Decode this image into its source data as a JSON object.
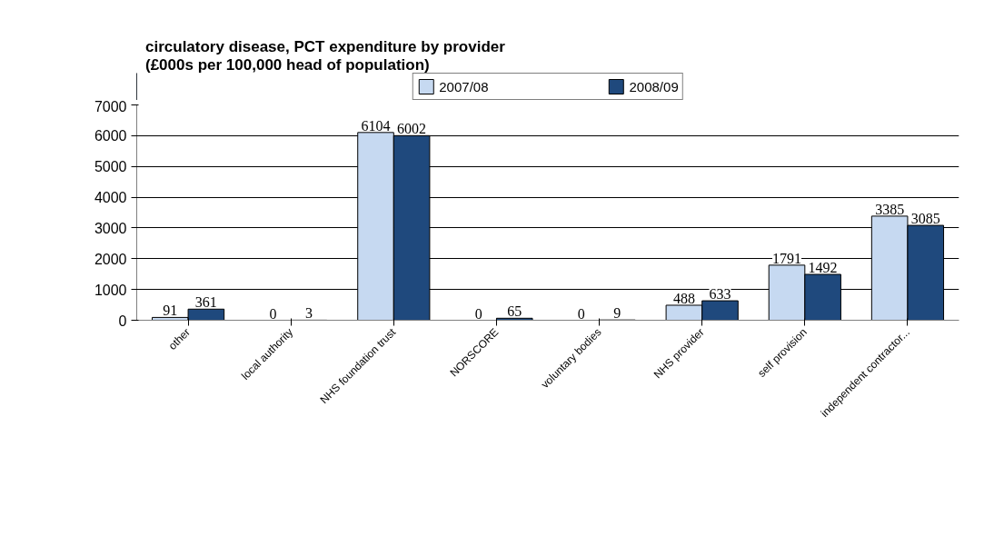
{
  "chart_data": {
    "type": "bar",
    "title": "circulatory disease, PCT expenditure by provider",
    "subtitle": "(£000s per 100,000 head of population)",
    "categories": [
      "other",
      "local authority",
      "NHS foundation trust",
      "NORSCORE",
      "voluntary bodies",
      "NHS provider",
      "self provision",
      "independent contractor..."
    ],
    "series": [
      {
        "name": "2007/08",
        "color": "#c6d9f1",
        "values": [
          91,
          0,
          6104,
          0,
          0,
          488,
          1791,
          3385
        ]
      },
      {
        "name": "2008/09",
        "color": "#1f497d",
        "values": [
          361,
          3,
          6002,
          65,
          9,
          633,
          1492,
          3085
        ]
      }
    ],
    "ylim": [
      0,
      7000
    ],
    "yticks": [
      0,
      1000,
      2000,
      3000,
      4000,
      5000,
      6000,
      7000
    ],
    "grid": "y",
    "legend": "top",
    "data_labels": true
  }
}
